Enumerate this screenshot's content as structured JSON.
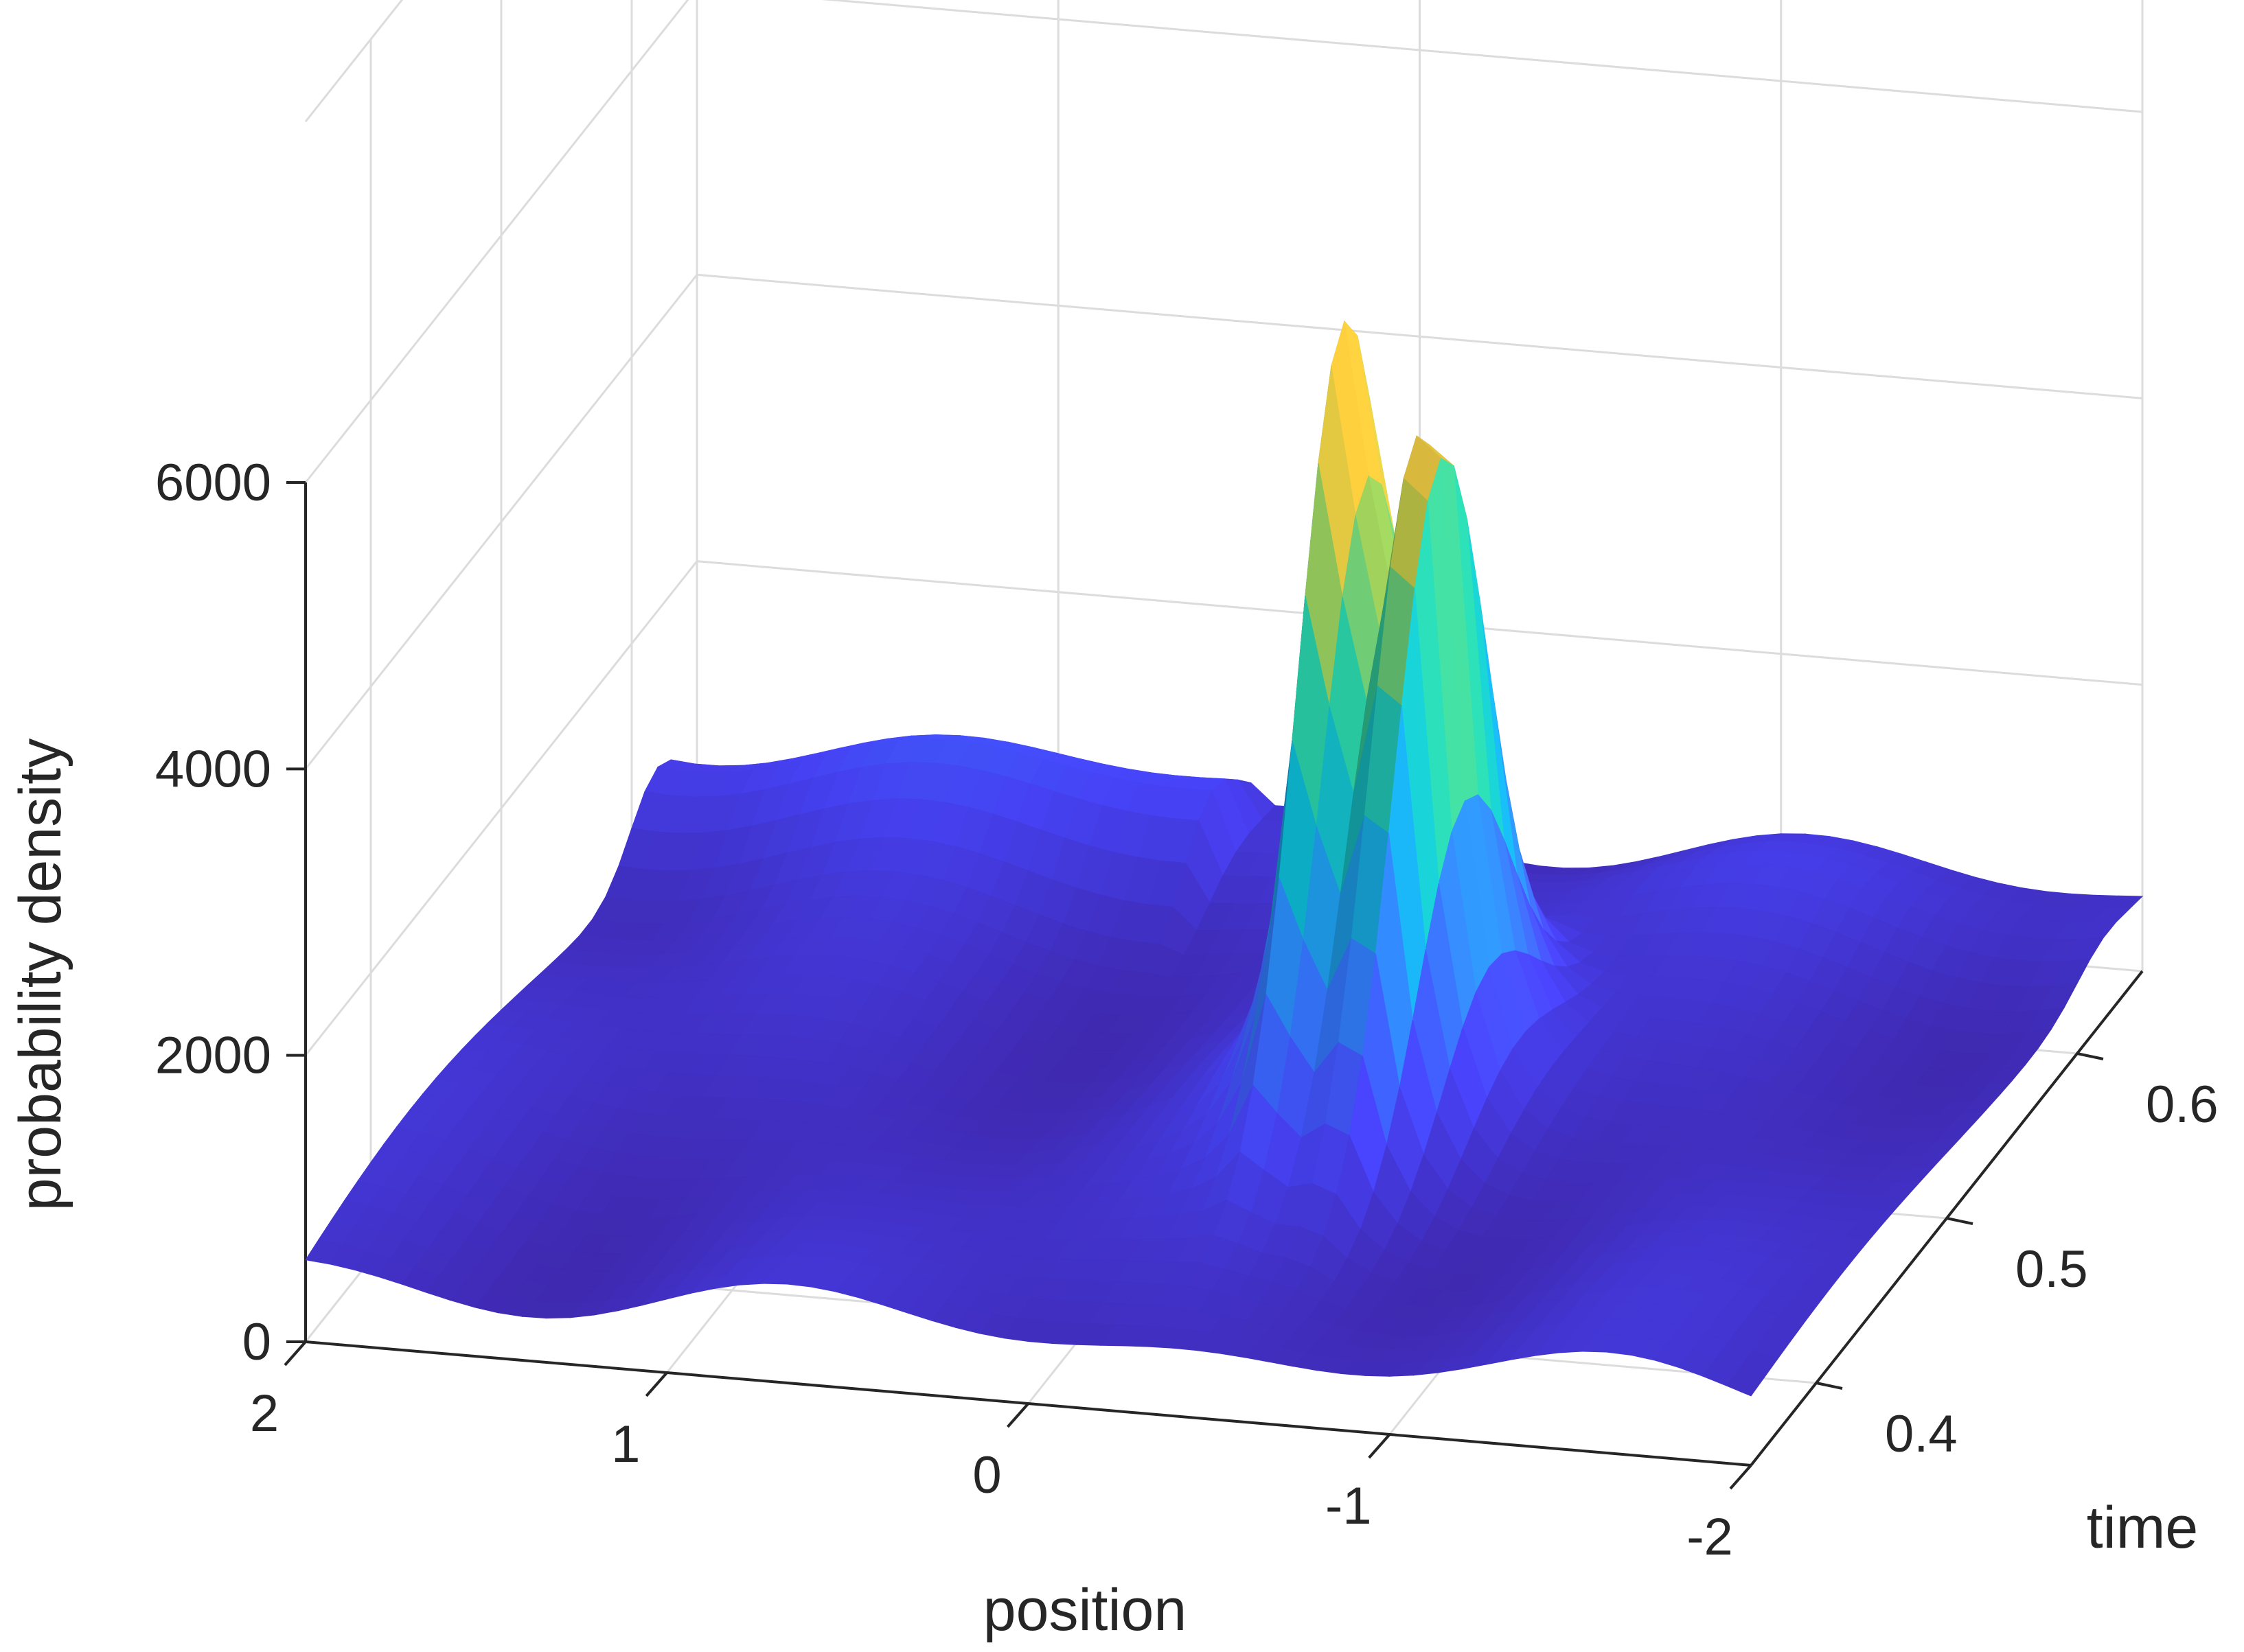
{
  "chart_data": {
    "type": "surface",
    "title": "",
    "xlabel": "position",
    "ylabel": "time",
    "zlabel": "probability density",
    "x_ticks": [
      2,
      1,
      0,
      -1,
      -2
    ],
    "x_tick_labels": [
      "2",
      "1",
      "0",
      "-1",
      "-2"
    ],
    "y_ticks": [
      0.4,
      0.5,
      0.6
    ],
    "y_tick_labels": [
      "0.4",
      "0.5",
      "0.6"
    ],
    "z_ticks": [
      0,
      2000,
      4000,
      6000
    ],
    "z_tick_labels": [
      "0",
      "2000",
      "4000",
      "6000"
    ],
    "xlim": [
      -2,
      2
    ],
    "ylim": [
      0.35,
      0.65
    ],
    "zlim": [
      0,
      6000
    ],
    "grid": true,
    "colormap": "parula",
    "colormap_stops": [
      "#3e26a8",
      "#4743f8",
      "#2f80fa",
      "#0cb3cc",
      "#2bc69b",
      "#a5be47",
      "#ffb836",
      "#f9fb15"
    ],
    "peaks": [
      {
        "x": -0.35,
        "y": 0.5,
        "z": 6300
      },
      {
        "x": -0.57,
        "y": 0.5,
        "z": 6250
      }
    ],
    "baseline_z": 500
  }
}
